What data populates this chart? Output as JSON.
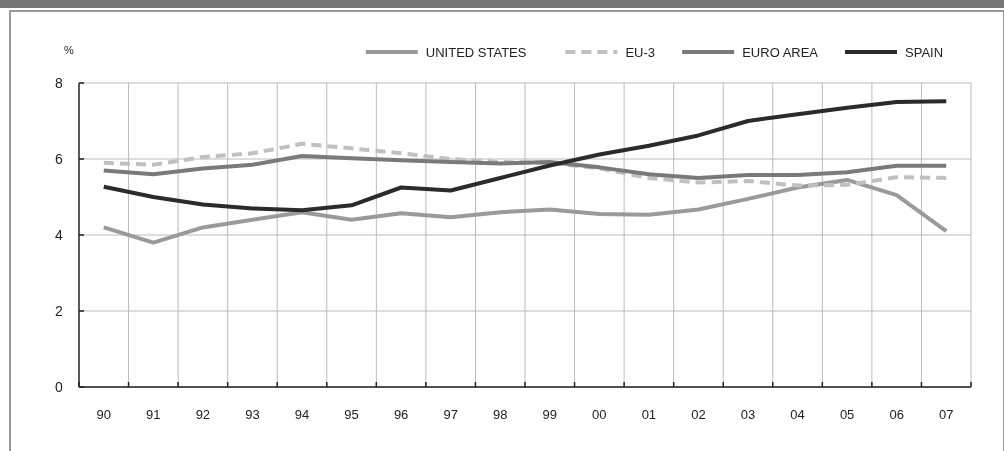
{
  "chart_data": {
    "type": "line",
    "ylabel": "%",
    "categories": [
      "90",
      "91",
      "92",
      "93",
      "94",
      "95",
      "96",
      "97",
      "98",
      "99",
      "00",
      "01",
      "02",
      "03",
      "04",
      "05",
      "06",
      "07"
    ],
    "ylim": [
      0,
      8
    ],
    "yticks": [
      0,
      2,
      4,
      6,
      8
    ],
    "grid": true,
    "legend": "top right",
    "marker": "none",
    "series": [
      {
        "name": "UNITED STATES",
        "color": "#9a9a9c",
        "line_style": "solid",
        "values": [
          4.2,
          3.8,
          4.2,
          4.4,
          4.6,
          4.4,
          4.57,
          4.47,
          4.6,
          4.67,
          4.55,
          4.53,
          4.67,
          4.95,
          5.25,
          5.45,
          5.05,
          4.1
        ]
      },
      {
        "name": "EU-3",
        "color": "#c0c0c2",
        "line_style": "dashed",
        "values": [
          5.9,
          5.85,
          6.05,
          6.15,
          6.4,
          6.28,
          6.15,
          6.0,
          5.92,
          5.9,
          5.75,
          5.5,
          5.38,
          5.42,
          5.3,
          5.32,
          5.52,
          5.5
        ]
      },
      {
        "name": "EURO AREA",
        "color": "#7a7a7c",
        "line_style": "solid",
        "values": [
          5.7,
          5.6,
          5.75,
          5.85,
          6.08,
          6.02,
          5.97,
          5.92,
          5.88,
          5.92,
          5.78,
          5.6,
          5.5,
          5.58,
          5.58,
          5.65,
          5.82,
          5.82
        ]
      },
      {
        "name": "SPAIN",
        "color": "#2b2b2b",
        "line_style": "solid",
        "values": [
          5.27,
          5.0,
          4.8,
          4.7,
          4.65,
          4.78,
          5.25,
          5.17,
          5.5,
          5.83,
          6.12,
          6.35,
          6.62,
          7.0,
          7.18,
          7.35,
          7.5,
          7.52
        ]
      }
    ]
  }
}
